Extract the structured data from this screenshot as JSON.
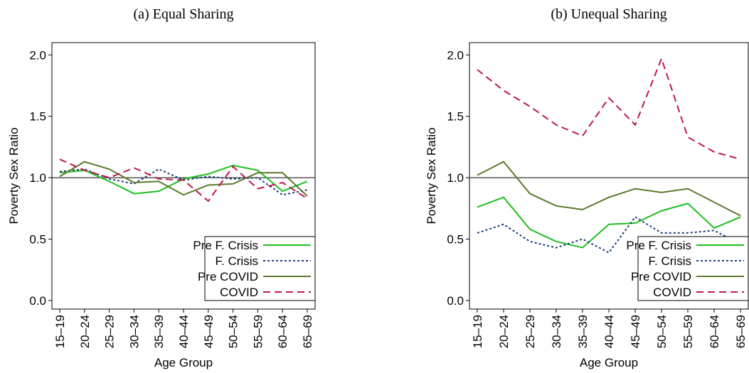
{
  "chart_data": [
    {
      "type": "line",
      "title": "(a) Equal Sharing",
      "x_label": "Age Group",
      "y_label": "Poverty Sex Ratio",
      "categories": [
        "15–19",
        "20–24",
        "25–29",
        "30–34",
        "35–39",
        "40–44",
        "45–49",
        "50–54",
        "55–59",
        "60–64",
        "65–69"
      ],
      "ylim": [
        -0.07,
        2.1
      ],
      "yticks": [
        {
          "value": 0,
          "label": "0.0"
        },
        {
          "value": 0.5,
          "label": "0.5"
        },
        {
          "value": 1,
          "label": "1.0"
        },
        {
          "value": 1.5,
          "label": "1.5"
        },
        {
          "value": 2,
          "label": "2.0"
        }
      ],
      "reference_line": 1,
      "legend": "lower right",
      "series": [
        {
          "name": "Pre F. Crisis",
          "color": "#1fbf1f",
          "dash": "solid",
          "values": [
            1.04,
            1.06,
            0.97,
            0.87,
            0.89,
            0.99,
            1.03,
            1.1,
            1.06,
            0.89,
            0.97
          ]
        },
        {
          "name": "F. Crisis",
          "color": "#1c3f78",
          "dash": "dotted",
          "values": [
            1.05,
            1.07,
            0.99,
            0.95,
            1.07,
            0.98,
            1.01,
            0.99,
            1.0,
            0.86,
            0.9
          ]
        },
        {
          "name": "Pre COVID",
          "color": "#5b7a2a",
          "dash": "solid",
          "values": [
            1.01,
            1.13,
            1.07,
            0.96,
            0.97,
            0.86,
            0.94,
            0.95,
            1.04,
            1.04,
            0.85
          ]
        },
        {
          "name": "COVID",
          "color": "#c2164c",
          "dash": "dashed",
          "values": [
            1.15,
            1.06,
            1.0,
            1.08,
            0.99,
            0.98,
            0.81,
            1.09,
            0.91,
            0.96,
            0.83
          ]
        }
      ]
    },
    {
      "type": "line",
      "title": "(b) Unequal Sharing",
      "x_label": "Age Group",
      "y_label": "Poverty Sex Ratio",
      "categories": [
        "15–19",
        "20–24",
        "25–29",
        "30–34",
        "35–39",
        "40–44",
        "45–49",
        "50–54",
        "55–59",
        "60–64",
        "65–69"
      ],
      "ylim": [
        -0.07,
        2.1
      ],
      "yticks": [
        {
          "value": 0,
          "label": "0.0"
        },
        {
          "value": 0.5,
          "label": "0.5"
        },
        {
          "value": 1,
          "label": "1.0"
        },
        {
          "value": 1.5,
          "label": "1.5"
        },
        {
          "value": 2,
          "label": "2.0"
        }
      ],
      "reference_line": 1,
      "legend": "lower right",
      "series": [
        {
          "name": "Pre F. Crisis",
          "color": "#1fbf1f",
          "dash": "solid",
          "values": [
            0.76,
            0.84,
            0.58,
            0.48,
            0.43,
            0.62,
            0.63,
            0.73,
            0.79,
            0.59,
            0.68
          ]
        },
        {
          "name": "F. Crisis",
          "color": "#1c3f78",
          "dash": "dotted",
          "values": [
            0.55,
            0.62,
            0.48,
            0.43,
            0.5,
            0.39,
            0.68,
            0.55,
            0.55,
            0.57,
            0.46
          ]
        },
        {
          "name": "Pre COVID",
          "color": "#5b7a2a",
          "dash": "solid",
          "values": [
            1.02,
            1.13,
            0.87,
            0.77,
            0.74,
            0.84,
            0.91,
            0.88,
            0.91,
            0.8,
            0.69
          ]
        },
        {
          "name": "COVID",
          "color": "#c2164c",
          "dash": "dashed",
          "values": [
            1.88,
            1.71,
            1.58,
            1.43,
            1.34,
            1.65,
            1.43,
            1.97,
            1.33,
            1.21,
            1.15
          ]
        }
      ]
    }
  ]
}
